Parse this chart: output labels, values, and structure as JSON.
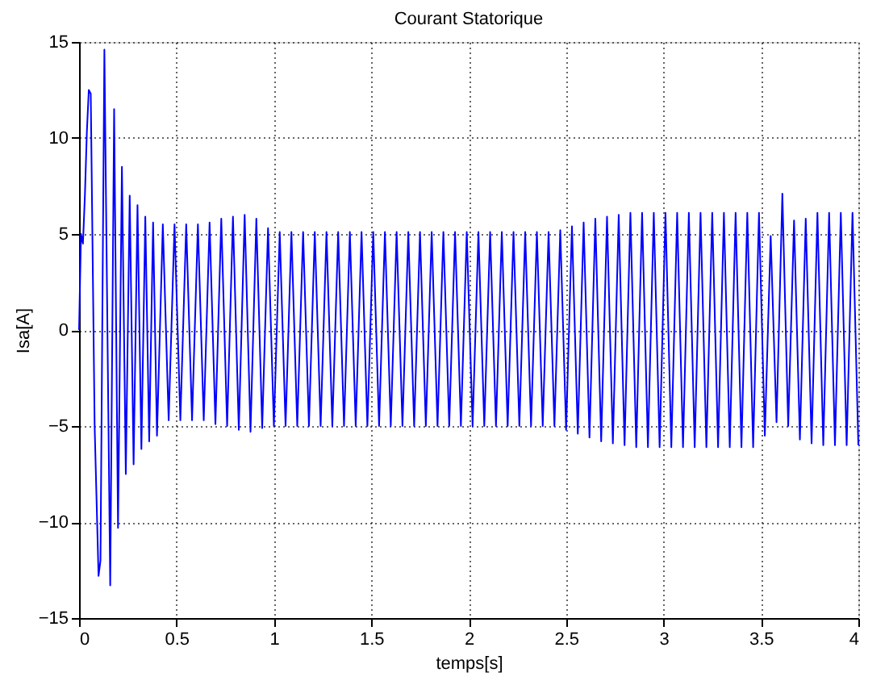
{
  "chart_data": {
    "type": "line",
    "title": "Courant Statorique",
    "xlabel": "temps[s]",
    "ylabel": "Isa[A]",
    "xlim": [
      0,
      4
    ],
    "xticks": [
      0,
      0.5,
      1,
      1.5,
      2,
      2.5,
      3,
      3.5,
      4
    ],
    "ylim": [
      -15,
      15
    ],
    "yticks": [
      -15,
      -10,
      -5,
      0,
      5,
      10,
      15
    ],
    "grid": true,
    "series": [
      {
        "color": "#0000ff",
        "x": [
          0,
          0.01,
          0.02,
          0.03,
          0.04,
          0.05,
          0.06,
          0.08,
          0.1,
          0.11,
          0.13,
          0.16,
          0.18,
          0.2,
          0.22,
          0.24,
          0.26,
          0.28,
          0.3,
          0.32,
          0.34,
          0.36,
          0.38,
          0.4,
          0.43,
          0.46,
          0.49,
          0.52,
          0.55,
          0.58,
          0.61,
          0.64,
          0.67,
          0.7,
          0.73,
          0.76,
          0.79,
          0.82,
          0.85,
          0.88,
          0.91,
          0.94,
          0.97,
          1.0,
          1.03,
          1.06,
          1.09,
          1.12,
          1.15,
          1.18,
          1.21,
          1.24,
          1.27,
          1.3,
          1.33,
          1.36,
          1.39,
          1.42,
          1.45,
          1.48,
          1.51,
          1.54,
          1.57,
          1.6,
          1.63,
          1.66,
          1.69,
          1.72,
          1.75,
          1.78,
          1.81,
          1.84,
          1.87,
          1.9,
          1.93,
          1.96,
          1.99,
          2.02,
          2.05,
          2.08,
          2.11,
          2.14,
          2.17,
          2.2,
          2.23,
          2.26,
          2.29,
          2.32,
          2.35,
          2.38,
          2.41,
          2.44,
          2.47,
          2.5,
          2.53,
          2.56,
          2.59,
          2.62,
          2.65,
          2.68,
          2.71,
          2.74,
          2.77,
          2.8,
          2.83,
          2.86,
          2.89,
          2.92,
          2.95,
          2.98,
          3.01,
          3.04,
          3.07,
          3.1,
          3.13,
          3.16,
          3.19,
          3.22,
          3.25,
          3.28,
          3.31,
          3.34,
          3.37,
          3.4,
          3.43,
          3.46,
          3.49,
          3.52,
          3.55,
          3.58,
          3.61,
          3.64,
          3.67,
          3.7,
          3.73,
          3.76,
          3.79,
          3.82,
          3.85,
          3.88,
          3.91,
          3.94,
          3.97,
          4.0
        ],
        "values": [
          0,
          5,
          4.5,
          7,
          10.3,
          12.5,
          12.3,
          -5,
          -12.8,
          -12,
          14.6,
          -13.3,
          11.5,
          -10.3,
          8.5,
          -7.5,
          7.0,
          -7.0,
          6.5,
          -6.2,
          5.9,
          -5.8,
          5.6,
          -5.5,
          5.5,
          -4.7,
          5.5,
          -4.7,
          5.5,
          -4.7,
          5.5,
          -4.7,
          5.6,
          -4.9,
          5.8,
          -5.0,
          5.9,
          -5.2,
          6.0,
          -5.3,
          5.8,
          -5.1,
          5.3,
          -5.0,
          5.1,
          -5.0,
          5.1,
          -5.0,
          5.1,
          -5.0,
          5.1,
          -5.0,
          5.1,
          -5.0,
          5.1,
          -5.0,
          5.1,
          -5.0,
          5.1,
          -5.0,
          5.1,
          -5.0,
          5.1,
          -5.0,
          5.1,
          -5.0,
          5.1,
          -5.0,
          5.1,
          -5.0,
          5.1,
          -5.0,
          5.1,
          -5.0,
          5.1,
          -5.0,
          5.1,
          -5.0,
          5.1,
          -5.0,
          5.1,
          -5.0,
          5.1,
          -5.0,
          5.1,
          -5.0,
          5.1,
          -5.0,
          5.1,
          -5.0,
          5.1,
          -5.0,
          5.2,
          -5.2,
          5.4,
          -5.4,
          5.6,
          -5.6,
          5.8,
          -5.8,
          5.9,
          -5.9,
          6.0,
          -6.0,
          6.1,
          -6.1,
          6.1,
          -6.1,
          6.1,
          -6.1,
          6.1,
          -6.1,
          6.1,
          -6.1,
          6.1,
          -6.1,
          6.1,
          -6.1,
          6.1,
          -6.1,
          6.1,
          -6.1,
          6.1,
          -6.1,
          6.1,
          -6.1,
          6.1,
          -5.5,
          4.9,
          -4.8,
          7.1,
          -5.0,
          5.7,
          -5.7,
          5.8,
          -5.9,
          6.1,
          -6.0,
          6.1,
          -6.0,
          6.1,
          -6.0,
          6.1,
          -6.0
        ]
      }
    ]
  }
}
